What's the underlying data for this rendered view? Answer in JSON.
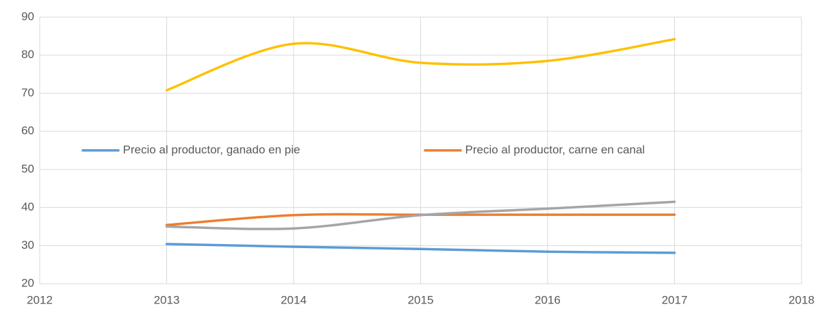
{
  "chart_data": {
    "type": "line",
    "x": [
      2013,
      2014,
      2015,
      2016,
      2017
    ],
    "series": [
      {
        "name": "Precio al productor, ganado en pie",
        "color": "#5b9bd5",
        "values": [
          30.4,
          29.7,
          29.1,
          28.4,
          28.1
        ]
      },
      {
        "name": "Precio al productor, carne en canal",
        "color": "#ed7d31",
        "values": [
          35.4,
          38.0,
          38.1,
          38.1,
          38.1
        ]
      },
      {
        "color": "#a5a5a5",
        "values": [
          35.0,
          34.5,
          38.0,
          39.7,
          41.5
        ]
      },
      {
        "color": "#ffc000",
        "values": [
          70.8,
          83.0,
          78.0,
          78.5,
          84.2
        ]
      }
    ],
    "xlim": [
      2012,
      2018
    ],
    "xticks": [
      2012,
      2013,
      2014,
      2015,
      2016,
      2017,
      2018
    ],
    "ylim": [
      20,
      90
    ],
    "yticks": [
      20,
      30,
      40,
      50,
      60,
      70,
      80,
      90
    ],
    "grid": true,
    "smooth": true,
    "legend": "center"
  }
}
